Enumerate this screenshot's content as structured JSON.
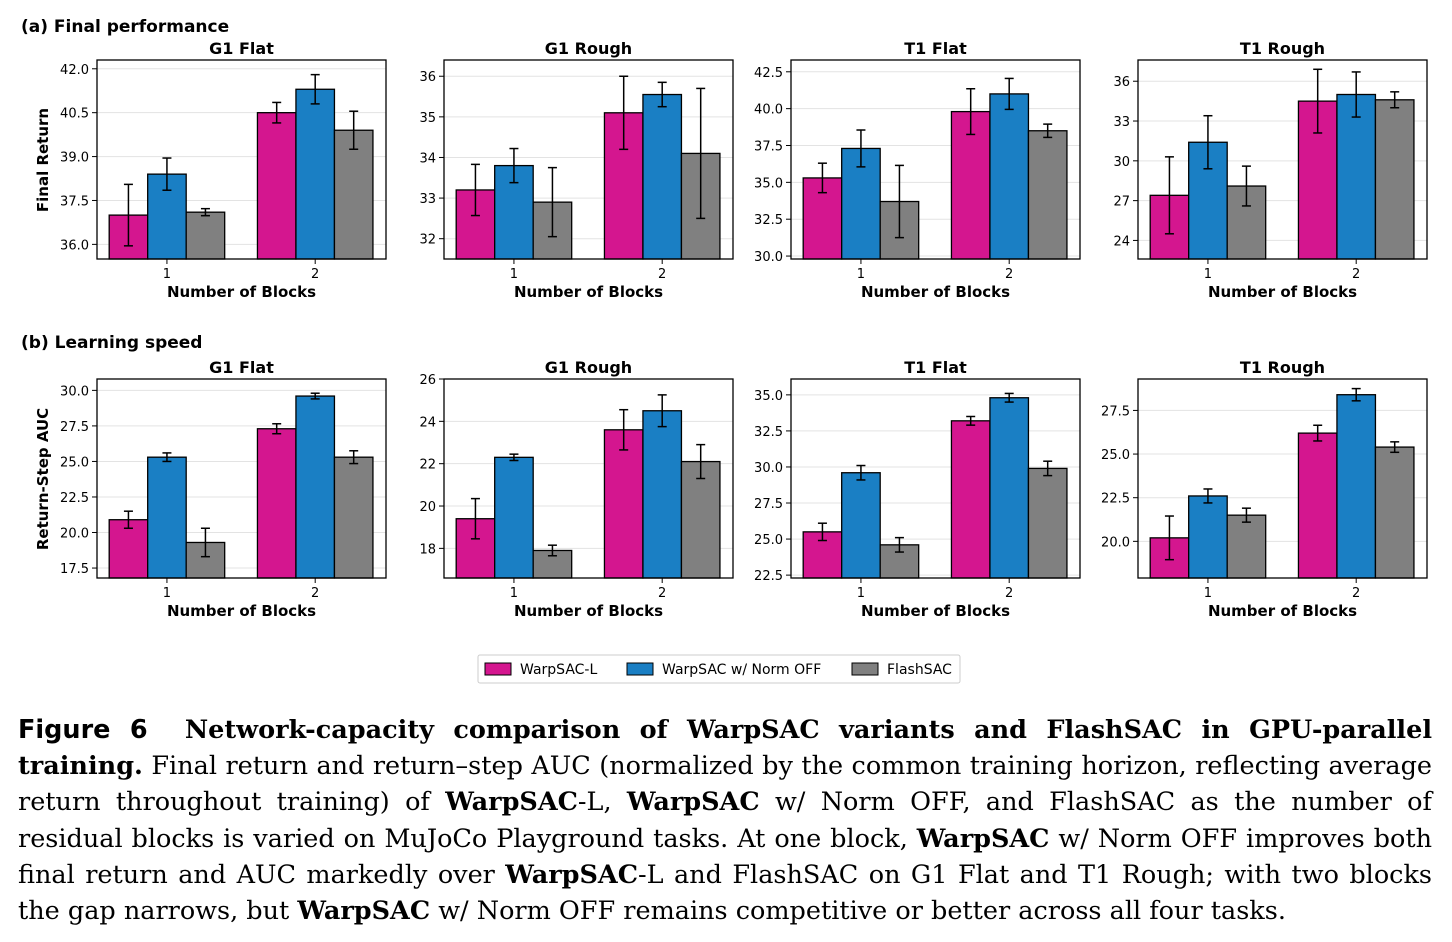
{
  "rows": [
    {
      "label": "(a) Final performance",
      "ylabel": "Final Return"
    },
    {
      "label": "(b) Learning speed",
      "ylabel": "Return-Step AUC"
    }
  ],
  "xlabel": "Number of Blocks",
  "legend": [
    {
      "name": "WarpSAC-L",
      "color": "#d4168f"
    },
    {
      "name": "WarpSAC w/ Norm OFF",
      "color": "#1a7fc4"
    },
    {
      "name": "FlashSAC",
      "color": "#808080"
    }
  ],
  "chart_data": [
    {
      "type": "bar",
      "title": "G1 Flat",
      "ylabel": "Final Return",
      "xlabel": "Number of Blocks",
      "categories": [
        "1",
        "2"
      ],
      "ylim": [
        35.5,
        42.3
      ],
      "yticks": [
        "36.0",
        "37.5",
        "39.0",
        "40.5",
        "42.0"
      ],
      "series": [
        {
          "name": "WarpSAC-L",
          "values": [
            37.0,
            40.5
          ],
          "errors": [
            1.05,
            0.35
          ]
        },
        {
          "name": "WarpSAC w/ Norm OFF",
          "values": [
            38.4,
            41.3
          ],
          "errors": [
            0.55,
            0.5
          ]
        },
        {
          "name": "FlashSAC",
          "values": [
            37.1,
            39.9
          ],
          "errors": [
            0.12,
            0.65
          ]
        }
      ]
    },
    {
      "type": "bar",
      "title": "G1 Rough",
      "ylabel": "Final Return",
      "xlabel": "Number of Blocks",
      "categories": [
        "1",
        "2"
      ],
      "ylim": [
        31.5,
        36.4
      ],
      "yticks": [
        "32",
        "33",
        "34",
        "35",
        "36"
      ],
      "series": [
        {
          "name": "WarpSAC-L",
          "values": [
            33.2,
            35.1
          ],
          "errors": [
            0.63,
            0.9
          ]
        },
        {
          "name": "WarpSAC w/ Norm OFF",
          "values": [
            33.8,
            35.55
          ],
          "errors": [
            0.42,
            0.3
          ]
        },
        {
          "name": "FlashSAC",
          "values": [
            32.9,
            34.1
          ],
          "errors": [
            0.85,
            1.6
          ]
        }
      ]
    },
    {
      "type": "bar",
      "title": "T1 Flat",
      "ylabel": "Final Return",
      "xlabel": "Number of Blocks",
      "categories": [
        "1",
        "2"
      ],
      "ylim": [
        29.8,
        43.3
      ],
      "yticks": [
        "30.0",
        "32.5",
        "35.0",
        "37.5",
        "40.0",
        "42.5"
      ],
      "series": [
        {
          "name": "WarpSAC-L",
          "values": [
            35.3,
            39.8
          ],
          "errors": [
            1.0,
            1.55
          ]
        },
        {
          "name": "WarpSAC w/ Norm OFF",
          "values": [
            37.3,
            41.0
          ],
          "errors": [
            1.25,
            1.05
          ]
        },
        {
          "name": "FlashSAC",
          "values": [
            33.7,
            38.5
          ],
          "errors": [
            2.45,
            0.45
          ]
        }
      ]
    },
    {
      "type": "bar",
      "title": "T1 Rough",
      "ylabel": "Final Return",
      "xlabel": "Number of Blocks",
      "categories": [
        "1",
        "2"
      ],
      "ylim": [
        22.6,
        37.6
      ],
      "yticks": [
        "24",
        "27",
        "30",
        "33",
        "36"
      ],
      "series": [
        {
          "name": "WarpSAC-L",
          "values": [
            27.4,
            34.5
          ],
          "errors": [
            2.9,
            2.4
          ]
        },
        {
          "name": "WarpSAC w/ Norm OFF",
          "values": [
            31.4,
            35.0
          ],
          "errors": [
            2.0,
            1.7
          ]
        },
        {
          "name": "FlashSAC",
          "values": [
            28.1,
            34.6
          ],
          "errors": [
            1.5,
            0.6
          ]
        }
      ]
    },
    {
      "type": "bar",
      "title": "G1 Flat",
      "ylabel": "Return-Step AUC",
      "xlabel": "Number of Blocks",
      "categories": [
        "1",
        "2"
      ],
      "ylim": [
        16.8,
        30.8
      ],
      "yticks": [
        "17.5",
        "20.0",
        "22.5",
        "25.0",
        "27.5",
        "30.0"
      ],
      "series": [
        {
          "name": "WarpSAC-L",
          "values": [
            20.9,
            27.3
          ],
          "errors": [
            0.6,
            0.35
          ]
        },
        {
          "name": "WarpSAC w/ Norm OFF",
          "values": [
            25.3,
            29.6
          ],
          "errors": [
            0.3,
            0.2
          ]
        },
        {
          "name": "FlashSAC",
          "values": [
            19.3,
            25.3
          ],
          "errors": [
            1.0,
            0.45
          ]
        }
      ]
    },
    {
      "type": "bar",
      "title": "G1 Rough",
      "ylabel": "Return-Step AUC",
      "xlabel": "Number of Blocks",
      "categories": [
        "1",
        "2"
      ],
      "ylim": [
        16.6,
        26.0
      ],
      "yticks": [
        "18",
        "20",
        "22",
        "24",
        "26"
      ],
      "series": [
        {
          "name": "WarpSAC-L",
          "values": [
            19.4,
            23.6
          ],
          "errors": [
            0.95,
            0.95
          ]
        },
        {
          "name": "WarpSAC w/ Norm OFF",
          "values": [
            22.3,
            24.5
          ],
          "errors": [
            0.15,
            0.75
          ]
        },
        {
          "name": "FlashSAC",
          "values": [
            17.9,
            22.1
          ],
          "errors": [
            0.25,
            0.8
          ]
        }
      ]
    },
    {
      "type": "bar",
      "title": "T1 Flat",
      "ylabel": "Return-Step AUC",
      "xlabel": "Number of Blocks",
      "categories": [
        "1",
        "2"
      ],
      "ylim": [
        22.3,
        36.1
      ],
      "yticks": [
        "22.5",
        "25.0",
        "27.5",
        "30.0",
        "32.5",
        "35.0"
      ],
      "series": [
        {
          "name": "WarpSAC-L",
          "values": [
            25.5,
            33.2
          ],
          "errors": [
            0.6,
            0.3
          ]
        },
        {
          "name": "WarpSAC w/ Norm OFF",
          "values": [
            29.6,
            34.8
          ],
          "errors": [
            0.5,
            0.3
          ]
        },
        {
          "name": "FlashSAC",
          "values": [
            24.6,
            29.9
          ],
          "errors": [
            0.5,
            0.5
          ]
        }
      ]
    },
    {
      "type": "bar",
      "title": "T1 Rough",
      "ylabel": "Return-Step AUC",
      "xlabel": "Number of Blocks",
      "categories": [
        "1",
        "2"
      ],
      "ylim": [
        17.9,
        29.3
      ],
      "yticks": [
        "20.0",
        "22.5",
        "25.0",
        "27.5"
      ],
      "series": [
        {
          "name": "WarpSAC-L",
          "values": [
            20.2,
            26.2
          ],
          "errors": [
            1.25,
            0.45
          ]
        },
        {
          "name": "WarpSAC w/ Norm OFF",
          "values": [
            22.6,
            28.4
          ],
          "errors": [
            0.4,
            0.35
          ]
        },
        {
          "name": "FlashSAC",
          "values": [
            21.5,
            25.4
          ],
          "errors": [
            0.4,
            0.3
          ]
        }
      ]
    }
  ],
  "caption": {
    "label": "Figure 6",
    "title": "Network-capacity comparison of WarpSAC variants and FlashSAC in GPU-parallel training.",
    "t1": " Final return and return–step AUC (normalized by the common training horizon, reflecting average return throughout training) of ",
    "b1": "WarpSAC",
    "t2": "-L, ",
    "b2": "WarpSAC",
    "t3": " w/ Norm OFF, and FlashSAC as the number of residual blocks is varied on MuJoCo Playground tasks. At one block, ",
    "b3": "WarpSAC",
    "t4": " w/ Norm OFF improves both final return and AUC markedly over ",
    "b4": "WarpSAC",
    "t5": "-L and FlashSAC on G1 Flat and T1 Rough; with two blocks the gap narrows, but ",
    "b5": "WarpSAC",
    "t6": " w/ Norm OFF remains competitive or better across all four tasks."
  }
}
